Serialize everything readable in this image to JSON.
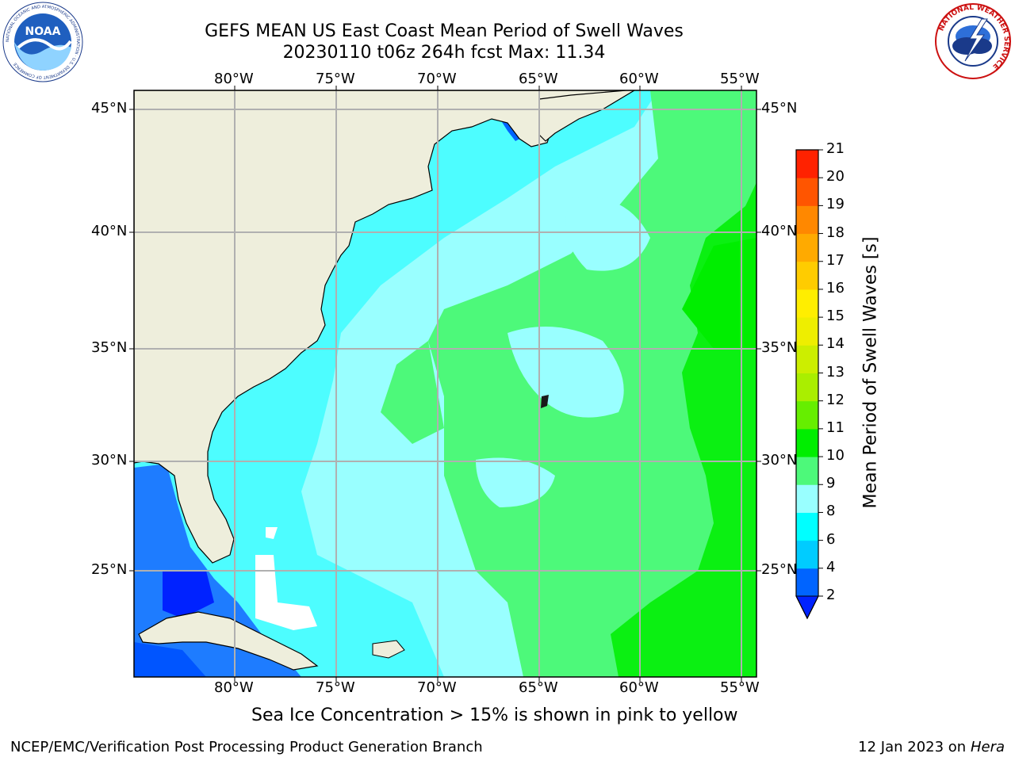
{
  "header": {
    "title_line1": "GEFS MEAN US East Coast Mean Period of Swell Waves",
    "title_line2": "20230110 t06z 264h fcst   Max: 11.34"
  },
  "logos": {
    "left": {
      "text": "NOAA",
      "ring_text": "NATIONAL OCEANIC AND ATMOSPHERIC ADMINISTRATION · U.S. DEPARTMENT OF COMMERCE",
      "icon": "noaa-logo-icon"
    },
    "right": {
      "ring_text": "NATIONAL WEATHER SERVICE",
      "icon": "nws-logo-icon"
    }
  },
  "map": {
    "lon_labels": [
      "80°W",
      "75°W",
      "70°W",
      "65°W",
      "60°W",
      "55°W"
    ],
    "lat_labels": [
      "45°N",
      "40°N",
      "35°N",
      "30°N",
      "25°N"
    ],
    "lon_range": [
      "85°W",
      "54°W"
    ],
    "lat_range": [
      "20°N",
      "46°N"
    ],
    "colors": {
      "land": "#eeeedc",
      "ocean_low": "#0064ff",
      "ocean_mid": "#00ffff",
      "ocean_light": "#99ffff",
      "ocean_green": "#4df97a",
      "ocean_bright_green": "#00ee00",
      "grid": "#b0b0b0"
    }
  },
  "colorbar": {
    "label": "Mean Period of Swell Waves [s]",
    "ticks": [
      "2",
      "4",
      "6",
      "8",
      "9",
      "10",
      "11",
      "12",
      "13",
      "14",
      "15",
      "16",
      "17",
      "18",
      "19",
      "20",
      "21"
    ],
    "colors": [
      "#0064ff",
      "#00ccff",
      "#00ffff",
      "#99ffff",
      "#4df97a",
      "#00ee00",
      "#66ee00",
      "#aaee00",
      "#ccee00",
      "#eeee00",
      "#ffee00",
      "#ffcc00",
      "#ffaa00",
      "#ff8800",
      "#ff5500",
      "#ff2200"
    ],
    "extend_color": "#0022ff"
  },
  "note": "Sea Ice Concentration > 15% is shown in pink to yellow",
  "footer": {
    "left": "NCEP/EMC/Verification Post Processing Product Generation Branch",
    "right_prefix": "12 Jan 2023 on ",
    "right_machine": "Hera"
  }
}
